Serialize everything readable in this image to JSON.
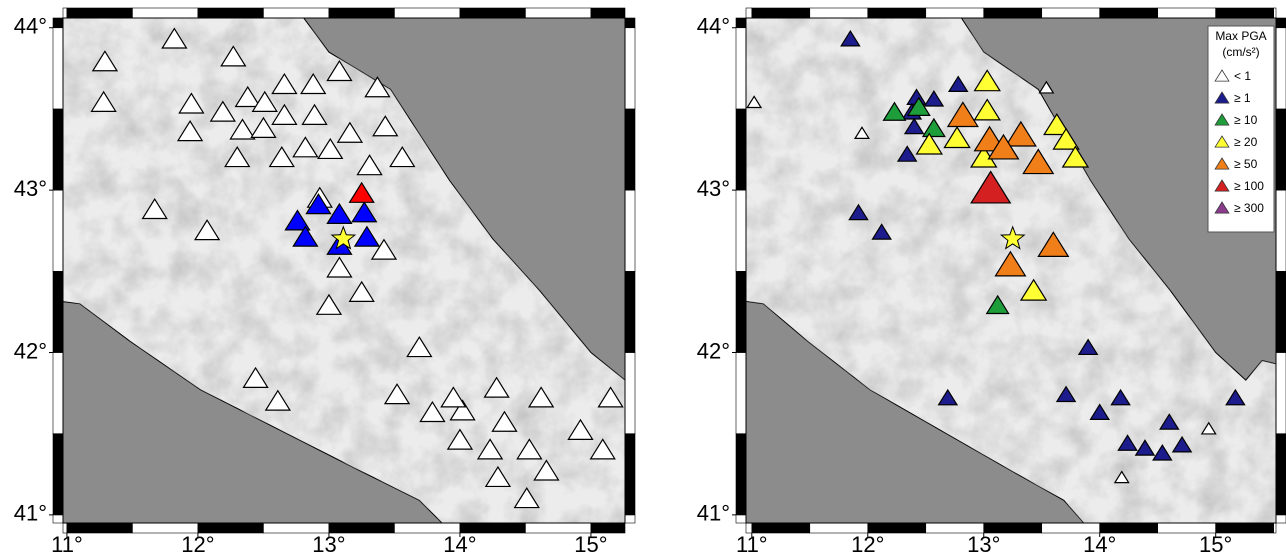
{
  "panels": [
    {
      "xlim": [
        10.97,
        15.26
      ],
      "ylim": [
        40.95,
        44.06
      ],
      "xticks": [
        {
          "value": 11,
          "label": "11°"
        },
        {
          "value": 12,
          "label": "12°"
        },
        {
          "value": 13,
          "label": "13°"
        },
        {
          "value": 14,
          "label": "14°"
        },
        {
          "value": 15,
          "label": "15°"
        }
      ],
      "yticks": [
        {
          "value": 41,
          "label": "41°"
        },
        {
          "value": 42,
          "label": "42°"
        },
        {
          "value": 43,
          "label": "43°"
        },
        {
          "value": 44,
          "label": "44°"
        }
      ],
      "stations": [
        {
          "lon": 11.82,
          "lat": 43.93,
          "color": "#ffffff"
        },
        {
          "lon": 11.29,
          "lat": 43.79,
          "color": "#ffffff"
        },
        {
          "lon": 11.28,
          "lat": 43.54,
          "color": "#ffffff"
        },
        {
          "lon": 12.27,
          "lat": 43.82,
          "color": "#ffffff"
        },
        {
          "lon": 13.08,
          "lat": 43.73,
          "color": "#ffffff"
        },
        {
          "lon": 13.37,
          "lat": 43.63,
          "color": "#ffffff"
        },
        {
          "lon": 12.66,
          "lat": 43.65,
          "color": "#ffffff"
        },
        {
          "lon": 12.88,
          "lat": 43.65,
          "color": "#ffffff"
        },
        {
          "lon": 11.95,
          "lat": 43.53,
          "color": "#ffffff"
        },
        {
          "lon": 12.38,
          "lat": 43.57,
          "color": "#ffffff"
        },
        {
          "lon": 12.19,
          "lat": 43.48,
          "color": "#ffffff"
        },
        {
          "lon": 12.51,
          "lat": 43.54,
          "color": "#ffffff"
        },
        {
          "lon": 11.94,
          "lat": 43.36,
          "color": "#ffffff"
        },
        {
          "lon": 12.34,
          "lat": 43.37,
          "color": "#ffffff"
        },
        {
          "lon": 12.66,
          "lat": 43.46,
          "color": "#ffffff"
        },
        {
          "lon": 12.89,
          "lat": 43.46,
          "color": "#ffffff"
        },
        {
          "lon": 12.5,
          "lat": 43.38,
          "color": "#ffffff"
        },
        {
          "lon": 13.43,
          "lat": 43.39,
          "color": "#ffffff"
        },
        {
          "lon": 13.16,
          "lat": 43.35,
          "color": "#ffffff"
        },
        {
          "lon": 12.82,
          "lat": 43.26,
          "color": "#ffffff"
        },
        {
          "lon": 13.01,
          "lat": 43.25,
          "color": "#ffffff"
        },
        {
          "lon": 12.64,
          "lat": 43.2,
          "color": "#ffffff"
        },
        {
          "lon": 12.3,
          "lat": 43.2,
          "color": "#ffffff"
        },
        {
          "lon": 13.31,
          "lat": 43.15,
          "color": "#ffffff"
        },
        {
          "lon": 13.56,
          "lat": 43.2,
          "color": "#ffffff"
        },
        {
          "lon": 11.67,
          "lat": 42.88,
          "color": "#ffffff"
        },
        {
          "lon": 12.07,
          "lat": 42.75,
          "color": "#ffffff"
        },
        {
          "lon": 12.93,
          "lat": 42.95,
          "color": "#ffffff"
        },
        {
          "lon": 13.42,
          "lat": 42.63,
          "color": "#ffffff"
        },
        {
          "lon": 13.08,
          "lat": 42.52,
          "color": "#ffffff"
        },
        {
          "lon": 13.25,
          "lat": 42.37,
          "color": "#ffffff"
        },
        {
          "lon": 13.0,
          "lat": 42.29,
          "color": "#ffffff"
        },
        {
          "lon": 13.69,
          "lat": 42.03,
          "color": "#ffffff"
        },
        {
          "lon": 12.44,
          "lat": 41.84,
          "color": "#ffffff"
        },
        {
          "lon": 12.61,
          "lat": 41.7,
          "color": "#ffffff"
        },
        {
          "lon": 13.52,
          "lat": 41.74,
          "color": "#ffffff"
        },
        {
          "lon": 13.79,
          "lat": 41.63,
          "color": "#ffffff"
        },
        {
          "lon": 14.02,
          "lat": 41.64,
          "color": "#ffffff"
        },
        {
          "lon": 13.95,
          "lat": 41.72,
          "color": "#ffffff"
        },
        {
          "lon": 14.28,
          "lat": 41.78,
          "color": "#ffffff"
        },
        {
          "lon": 14.34,
          "lat": 41.57,
          "color": "#ffffff"
        },
        {
          "lon": 14.62,
          "lat": 41.72,
          "color": "#ffffff"
        },
        {
          "lon": 14.0,
          "lat": 41.46,
          "color": "#ffffff"
        },
        {
          "lon": 14.23,
          "lat": 41.4,
          "color": "#ffffff"
        },
        {
          "lon": 14.53,
          "lat": 41.4,
          "color": "#ffffff"
        },
        {
          "lon": 14.29,
          "lat": 41.23,
          "color": "#ffffff"
        },
        {
          "lon": 14.51,
          "lat": 41.1,
          "color": "#ffffff"
        },
        {
          "lon": 14.66,
          "lat": 41.27,
          "color": "#ffffff"
        },
        {
          "lon": 15.09,
          "lat": 41.4,
          "color": "#ffffff"
        },
        {
          "lon": 14.92,
          "lat": 41.52,
          "color": "#ffffff"
        },
        {
          "lon": 15.15,
          "lat": 41.72,
          "color": "#ffffff"
        },
        {
          "lon": 12.76,
          "lat": 42.81,
          "color": "#0000ff"
        },
        {
          "lon": 12.82,
          "lat": 42.71,
          "color": "#0000ff"
        },
        {
          "lon": 12.92,
          "lat": 42.91,
          "color": "#0000ff"
        },
        {
          "lon": 13.08,
          "lat": 42.85,
          "color": "#0000ff"
        },
        {
          "lon": 13.27,
          "lat": 42.86,
          "color": "#0000ff"
        },
        {
          "lon": 13.08,
          "lat": 42.66,
          "color": "#0000ff"
        },
        {
          "lon": 13.29,
          "lat": 42.71,
          "color": "#0000ff"
        },
        {
          "lon": 13.25,
          "lat": 42.98,
          "color": "#ff0000"
        }
      ],
      "epicenter": {
        "lon": 13.11,
        "lat": 42.7,
        "color": "#ffff33"
      }
    },
    {
      "xlim": [
        10.95,
        15.52
      ],
      "ylim": [
        40.95,
        44.06
      ],
      "xticks": [
        {
          "value": 11,
          "label": "11°"
        },
        {
          "value": 12,
          "label": "12°"
        },
        {
          "value": 13,
          "label": "13°"
        },
        {
          "value": 14,
          "label": "14°"
        },
        {
          "value": 15,
          "label": "15°"
        }
      ],
      "yticks": [
        {
          "value": 41,
          "label": "41°"
        },
        {
          "value": 42,
          "label": "42°"
        },
        {
          "value": 43,
          "label": "43°"
        },
        {
          "value": 44,
          "label": "44°"
        }
      ],
      "legend": {
        "title": "Max PGA",
        "subtitle": "(cm/s²)",
        "entries": [
          {
            "label": "< 1",
            "color": "#ffffff"
          },
          {
            "label": "≥ 1",
            "color": "#1c1c8c"
          },
          {
            "label": "≥ 10",
            "color": "#1e9e3a"
          },
          {
            "label": "≥ 20",
            "color": "#ffff33"
          },
          {
            "label": "≥ 50",
            "color": "#f07f1a"
          },
          {
            "label": "≥ 100",
            "color": "#d42020"
          },
          {
            "label": "≥ 300",
            "color": "#8c3c8c"
          }
        ]
      },
      "stations": [
        {
          "lon": 11.02,
          "lat": 43.54,
          "class": 0
        },
        {
          "lon": 11.95,
          "lat": 43.35,
          "class": 0
        },
        {
          "lon": 13.54,
          "lat": 43.63,
          "class": 0
        },
        {
          "lon": 14.94,
          "lat": 41.53,
          "class": 0
        },
        {
          "lon": 14.19,
          "lat": 41.23,
          "class": 0
        },
        {
          "lon": 11.85,
          "lat": 43.93,
          "class": 1
        },
        {
          "lon": 12.78,
          "lat": 43.65,
          "class": 1
        },
        {
          "lon": 12.42,
          "lat": 43.57,
          "class": 1
        },
        {
          "lon": 12.57,
          "lat": 43.56,
          "class": 1
        },
        {
          "lon": 12.38,
          "lat": 43.48,
          "class": 1
        },
        {
          "lon": 12.4,
          "lat": 43.39,
          "class": 1
        },
        {
          "lon": 12.34,
          "lat": 43.22,
          "class": 1
        },
        {
          "lon": 11.92,
          "lat": 42.86,
          "class": 1
        },
        {
          "lon": 12.12,
          "lat": 42.74,
          "class": 1
        },
        {
          "lon": 12.69,
          "lat": 41.72,
          "class": 1
        },
        {
          "lon": 13.9,
          "lat": 42.03,
          "class": 1
        },
        {
          "lon": 13.71,
          "lat": 41.74,
          "class": 1
        },
        {
          "lon": 14.0,
          "lat": 41.63,
          "class": 1
        },
        {
          "lon": 14.18,
          "lat": 41.72,
          "class": 1
        },
        {
          "lon": 14.6,
          "lat": 41.57,
          "class": 1
        },
        {
          "lon": 14.24,
          "lat": 41.44,
          "class": 1
        },
        {
          "lon": 14.39,
          "lat": 41.41,
          "class": 1
        },
        {
          "lon": 14.54,
          "lat": 41.38,
          "class": 1
        },
        {
          "lon": 14.71,
          "lat": 41.43,
          "class": 1
        },
        {
          "lon": 15.17,
          "lat": 41.72,
          "class": 1
        },
        {
          "lon": 12.23,
          "lat": 43.48,
          "class": 2
        },
        {
          "lon": 12.44,
          "lat": 43.51,
          "class": 2
        },
        {
          "lon": 12.57,
          "lat": 43.38,
          "class": 2
        },
        {
          "lon": 13.12,
          "lat": 42.29,
          "class": 2
        },
        {
          "lon": 13.03,
          "lat": 43.67,
          "class": 3
        },
        {
          "lon": 13.03,
          "lat": 43.49,
          "class": 3
        },
        {
          "lon": 12.53,
          "lat": 43.28,
          "class": 3
        },
        {
          "lon": 12.77,
          "lat": 43.32,
          "class": 3
        },
        {
          "lon": 13.63,
          "lat": 43.4,
          "class": 3
        },
        {
          "lon": 13.71,
          "lat": 43.31,
          "class": 3
        },
        {
          "lon": 13.79,
          "lat": 43.2,
          "class": 3
        },
        {
          "lon": 13.43,
          "lat": 42.38,
          "class": 3
        },
        {
          "lon": 13.0,
          "lat": 43.2,
          "class": 3
        },
        {
          "lon": 12.82,
          "lat": 43.46,
          "class": 4
        },
        {
          "lon": 13.05,
          "lat": 43.31,
          "class": 4
        },
        {
          "lon": 13.32,
          "lat": 43.34,
          "class": 4
        },
        {
          "lon": 13.17,
          "lat": 43.26,
          "class": 4
        },
        {
          "lon": 13.47,
          "lat": 43.17,
          "class": 4
        },
        {
          "lon": 13.6,
          "lat": 42.66,
          "class": 4
        },
        {
          "lon": 13.23,
          "lat": 42.54,
          "class": 4
        },
        {
          "lon": 13.06,
          "lat": 43.01,
          "class": 5
        }
      ],
      "epicenter": {
        "lon": 13.25,
        "lat": 42.7,
        "color": "#ffff33"
      }
    }
  ]
}
